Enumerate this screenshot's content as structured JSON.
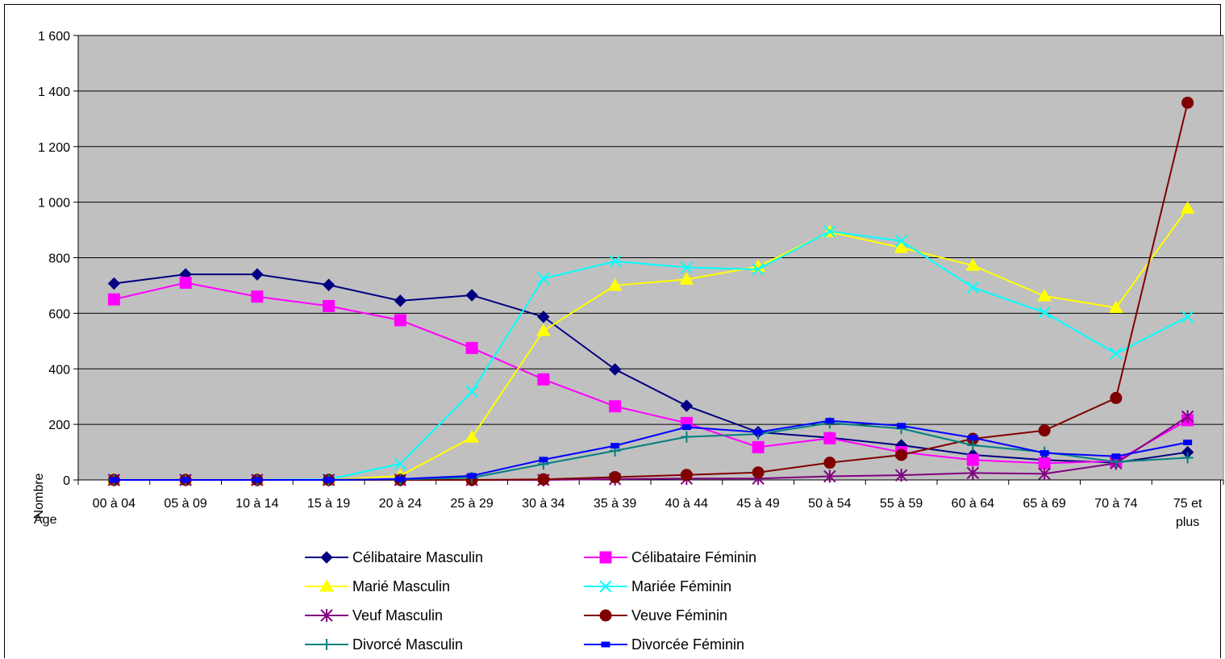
{
  "chart_data": {
    "type": "line",
    "ylabel": "Nombre",
    "xlabel": "Age",
    "ylim": [
      0,
      1600
    ],
    "y_ticks": [
      "0",
      "200",
      "400",
      "600",
      "800",
      "1 000",
      "1 200",
      "1 400",
      "1 600"
    ],
    "y_tick_values": [
      0,
      200,
      400,
      600,
      800,
      1000,
      1200,
      1400,
      1600
    ],
    "categories": [
      "00 à 04",
      "05 à 09",
      "10 à 14",
      "15 à 19",
      "20 à 24",
      "25 à 29",
      "30 à 34",
      "35 à 39",
      "40 à 44",
      "45 à 49",
      "50 à 54",
      "55 à 59",
      "60 à 64",
      "65 à 69",
      "70 à 74",
      "75 et plus"
    ],
    "category_lines": [
      [
        "00 à 04"
      ],
      [
        "05 à 09"
      ],
      [
        "10 à 14"
      ],
      [
        "15 à 19"
      ],
      [
        "20 à 24"
      ],
      [
        "25 à 29"
      ],
      [
        "30 à 34"
      ],
      [
        "35 à 39"
      ],
      [
        "40 à 44"
      ],
      [
        "45 à 49"
      ],
      [
        "50 à 54"
      ],
      [
        "55 à 59"
      ],
      [
        "60 à 64"
      ],
      [
        "65 à 69"
      ],
      [
        "70 à 74"
      ],
      [
        "75 et",
        "plus"
      ]
    ],
    "grid": true,
    "plot_background": "#c0c0c0",
    "legend_position": "bottom",
    "series": [
      {
        "name": "Célibataire Masculin",
        "color": "#000080",
        "marker": "diamond",
        "values": [
          707,
          740,
          740,
          702,
          645,
          665,
          587,
          398,
          267,
          172,
          152,
          125,
          90,
          72,
          62,
          100
        ]
      },
      {
        "name": "Célibataire Féminin",
        "color": "#ff00ff",
        "marker": "square",
        "values": [
          650,
          710,
          660,
          626,
          575,
          475,
          362,
          265,
          205,
          118,
          150,
          100,
          72,
          60,
          68,
          215
        ]
      },
      {
        "name": "Marié Masculin",
        "color": "#ffff00",
        "marker": "triangle",
        "values": [
          0,
          0,
          0,
          0,
          15,
          153,
          537,
          700,
          722,
          768,
          893,
          836,
          772,
          662,
          620,
          978
        ]
      },
      {
        "name": "Mariée Féminin",
        "color": "#00ffff",
        "marker": "x",
        "values": [
          0,
          0,
          0,
          2,
          58,
          318,
          725,
          787,
          765,
          758,
          895,
          860,
          693,
          603,
          455,
          587
        ]
      },
      {
        "name": "Veuf Masculin",
        "color": "#800080",
        "marker": "star",
        "values": [
          0,
          0,
          0,
          0,
          0,
          0,
          0,
          3,
          5,
          5,
          13,
          17,
          25,
          22,
          60,
          228
        ]
      },
      {
        "name": "Veuve Féminin",
        "color": "#800000",
        "marker": "circle",
        "values": [
          0,
          0,
          0,
          0,
          0,
          0,
          2,
          10,
          18,
          27,
          62,
          90,
          148,
          178,
          295,
          1358
        ]
      },
      {
        "name": "Divorcé Masculin",
        "color": "#008080",
        "marker": "plus",
        "values": [
          0,
          0,
          0,
          0,
          2,
          8,
          57,
          105,
          155,
          165,
          205,
          185,
          125,
          100,
          65,
          80
        ]
      },
      {
        "name": "Divorcée Féminin",
        "color": "#0000ff",
        "marker": "dash",
        "values": [
          0,
          0,
          0,
          0,
          3,
          15,
          73,
          123,
          190,
          172,
          213,
          195,
          152,
          97,
          85,
          135
        ]
      }
    ]
  }
}
